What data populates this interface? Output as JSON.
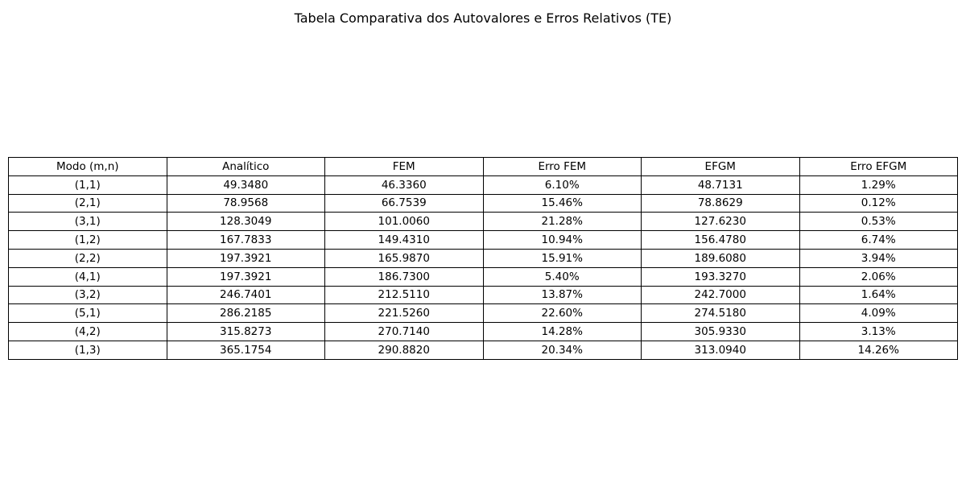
{
  "chart_data": {
    "type": "table",
    "title": "Tabela Comparativa dos Autovalores e Erros Relativos (TE)",
    "columns": [
      "Modo (m,n)",
      "Analítico",
      "FEM",
      "Erro FEM",
      "EFGM",
      "Erro EFGM"
    ],
    "rows": [
      [
        "(1,1)",
        "49.3480",
        "46.3360",
        "6.10%",
        "48.7131",
        "1.29%"
      ],
      [
        "(2,1)",
        "78.9568",
        "66.7539",
        "15.46%",
        "78.8629",
        "0.12%"
      ],
      [
        "(3,1)",
        "128.3049",
        "101.0060",
        "21.28%",
        "127.6230",
        "0.53%"
      ],
      [
        "(1,2)",
        "167.7833",
        "149.4310",
        "10.94%",
        "156.4780",
        "6.74%"
      ],
      [
        "(2,2)",
        "197.3921",
        "165.9870",
        "15.91%",
        "189.6080",
        "3.94%"
      ],
      [
        "(4,1)",
        "197.3921",
        "186.7300",
        "5.40%",
        "193.3270",
        "2.06%"
      ],
      [
        "(3,2)",
        "246.7401",
        "212.5110",
        "13.87%",
        "242.7000",
        "1.64%"
      ],
      [
        "(5,1)",
        "286.2185",
        "221.5260",
        "22.60%",
        "274.5180",
        "4.09%"
      ],
      [
        "(4,2)",
        "315.8273",
        "270.7140",
        "14.28%",
        "305.9330",
        "3.13%"
      ],
      [
        "(1,3)",
        "365.1754",
        "290.8820",
        "20.34%",
        "313.0940",
        "14.26%"
      ]
    ]
  }
}
